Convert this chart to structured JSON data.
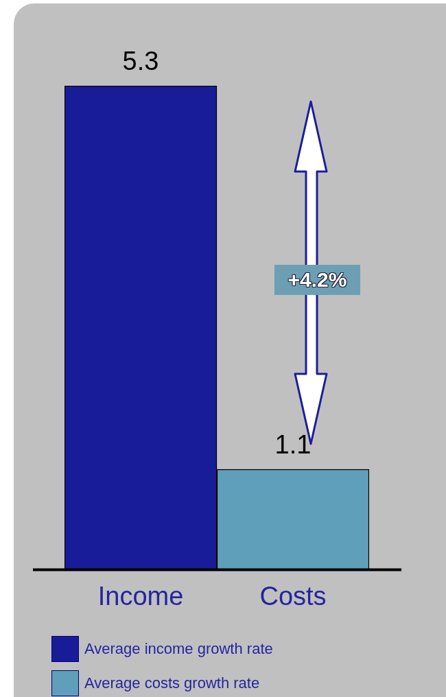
{
  "chart_data": {
    "type": "bar",
    "categories": [
      "Income",
      "Costs"
    ],
    "series": [
      {
        "name": "Average income growth rate",
        "color": "#191c99",
        "values": [
          5.3,
          null
        ]
      },
      {
        "name": "Average costs growth rate",
        "color": "#5f9fba",
        "values": [
          null,
          1.1
        ]
      }
    ],
    "data_labels": true,
    "legend": "bottom",
    "annotations": [
      "+4.2%"
    ]
  }
}
